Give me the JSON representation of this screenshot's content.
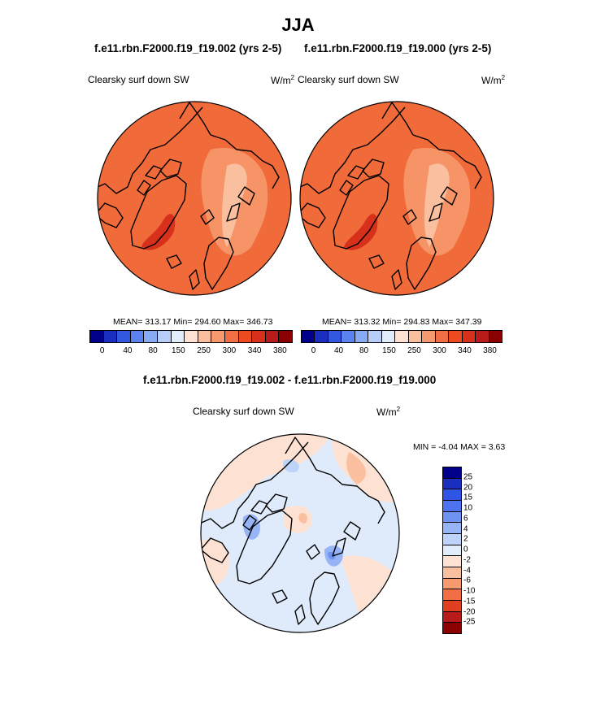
{
  "figure": {
    "season": "JJA",
    "case1": "f.e11.rbn.F2000.f19_f19.002 (yrs 2-5)",
    "case2": "f.e11.rbn.F2000.f19_f19.000 (yrs 2-5)",
    "diff_title": "f.e11.rbn.F2000.f19_f19.002 - f.e11.rbn.F2000.f19_f19.000",
    "variable": "Clearsky surf down SW",
    "units_base": "W/m",
    "units_exp": "2"
  },
  "colors": {
    "abs_scale": [
      "#00008a",
      "#1a2fbf",
      "#3358e0",
      "#5b83ef",
      "#88aaf5",
      "#b8cdf8",
      "#e1edfb",
      "#fde2d3",
      "#f9bf9e",
      "#f6996e",
      "#f26f45",
      "#ee4a22",
      "#d7301b",
      "#b71c1a",
      "#8b0000"
    ],
    "diff_scale": [
      "#00008a",
      "#1a2fbf",
      "#2f55e4",
      "#4d74ee",
      "#6f93f3",
      "#97b4f6",
      "#bed3f9",
      "#e1edfb",
      "#fde2d3",
      "#f9bf9e",
      "#f6996e",
      "#f26f45",
      "#e0401f",
      "#b71c1a",
      "#8b0000"
    ],
    "abs_fill": "#f06a3a",
    "abs_light": "#f6996e",
    "abs_pale": "#f9bf9e",
    "abs_dark": "#d7301b"
  },
  "chart_data": [
    {
      "type": "heatmap",
      "projection": "north-polar-stereographic",
      "title": "f.e11.rbn.F2000.f19_f19.002 (yrs 2-5)",
      "label": "Clearsky surf down SW",
      "units": "W/m2",
      "stats_text": "MEAN= 313.17  Min= 294.60  Max= 346.73",
      "mean": 313.17,
      "min": 294.6,
      "max": 346.73,
      "colorbar": {
        "orientation": "horizontal",
        "levels": [
          0,
          20,
          40,
          60,
          80,
          100,
          150,
          200,
          250,
          275,
          300,
          325,
          340,
          360,
          380
        ],
        "tick_labels": [
          "0",
          "40",
          "80",
          "150",
          "250",
          "300",
          "340",
          "380"
        ]
      }
    },
    {
      "type": "heatmap",
      "projection": "north-polar-stereographic",
      "title": "f.e11.rbn.F2000.f19_f19.000 (yrs 2-5)",
      "label": "Clearsky surf down SW",
      "units": "W/m2",
      "stats_text": "MEAN= 313.32  Min= 294.83  Max= 347.39",
      "mean": 313.32,
      "min": 294.83,
      "max": 347.39,
      "colorbar": {
        "orientation": "horizontal",
        "levels": [
          0,
          20,
          40,
          60,
          80,
          100,
          150,
          200,
          250,
          275,
          300,
          325,
          340,
          360,
          380
        ],
        "tick_labels": [
          "0",
          "40",
          "80",
          "150",
          "250",
          "300",
          "340",
          "380"
        ]
      }
    },
    {
      "type": "heatmap",
      "projection": "north-polar-stereographic",
      "title": "f.e11.rbn.F2000.f19_f19.002 - f.e11.rbn.F2000.f19_f19.000",
      "label": "Clearsky surf down SW",
      "units": "W/m2",
      "stats_text": "MIN =  -4.04 MAX =   3.63",
      "min": -4.04,
      "max": 3.63,
      "colorbar": {
        "orientation": "vertical",
        "levels": [
          25,
          20,
          15,
          10,
          6,
          4,
          2,
          0,
          -2,
          -4,
          -6,
          -10,
          -15,
          -20,
          -25
        ],
        "tick_labels": [
          "25",
          "20",
          "15",
          "10",
          "6",
          "4",
          "2",
          "0",
          "-2",
          "-4",
          "-6",
          "-10",
          "-15",
          "-20",
          "-25"
        ]
      }
    }
  ]
}
